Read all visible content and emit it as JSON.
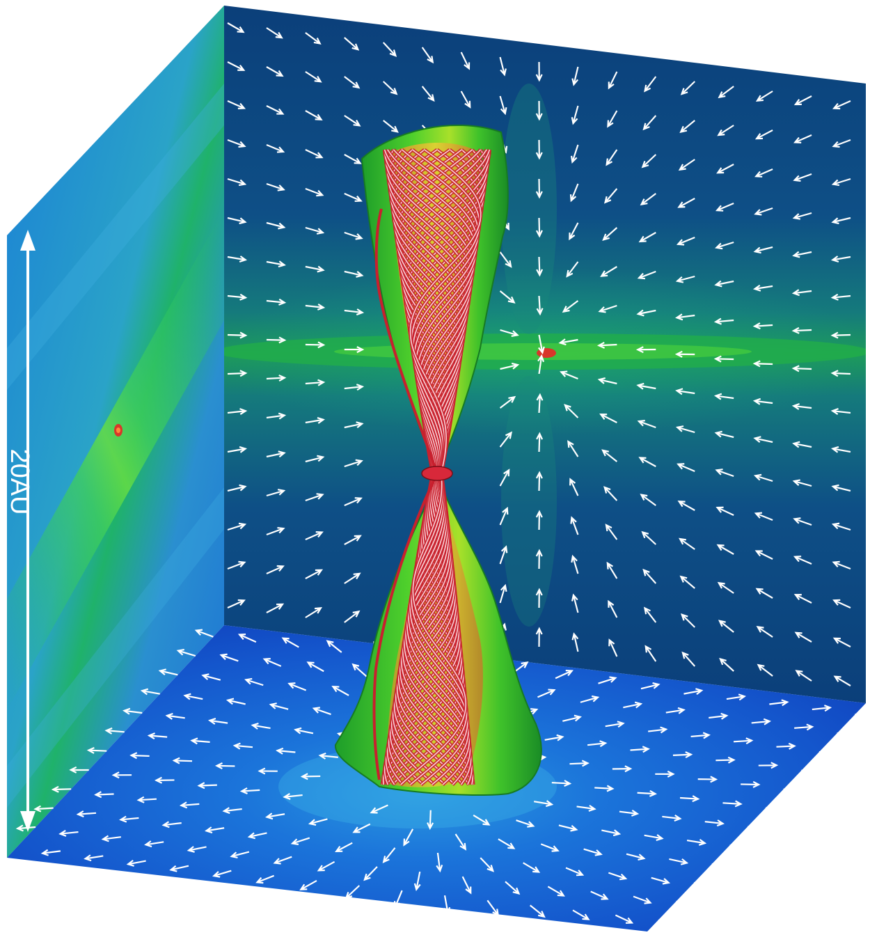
{
  "scale_bar": {
    "label": "20AU"
  },
  "colors": {
    "background_dark": "#0a3a78",
    "disk_green": "#1fb24a",
    "outflow_green": "#34c224",
    "field_line_red": "#d8283a",
    "arrow_white": "#ffffff",
    "floor_blue": "#1458c8"
  },
  "chart_data": {
    "type": "diagram",
    "panels": [
      "left-wall",
      "back-wall",
      "floor"
    ],
    "annotations": [
      "20AU"
    ]
  }
}
